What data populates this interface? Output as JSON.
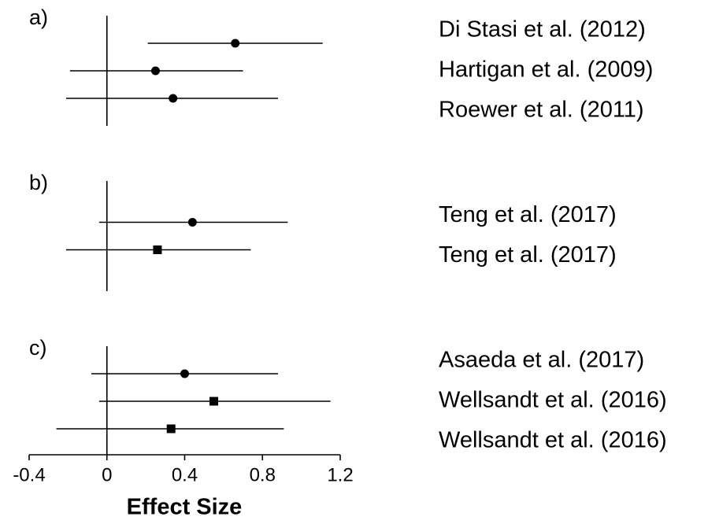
{
  "chart_data": {
    "type": "forest",
    "xlabel": "Effect Size",
    "xlim": [
      -0.4,
      1.2
    ],
    "xticks": [
      -0.4,
      0,
      0.4,
      0.8,
      1.2
    ],
    "color": "#000000",
    "panels": [
      {
        "label": "a)",
        "studies": [
          "Di Stasi et al. (2012)",
          "Hartigan et al. (2009)",
          "Roewer et al. (2011)"
        ],
        "values": [
          0.66,
          0.25,
          0.34
        ],
        "lower": [
          0.21,
          -0.19,
          -0.21
        ],
        "upper": [
          1.11,
          0.7,
          0.88
        ],
        "markers": [
          "circle",
          "circle",
          "circle"
        ]
      },
      {
        "label": "b)",
        "studies": [
          "Teng et al. (2017)",
          "Teng et al. (2017)"
        ],
        "values": [
          0.44,
          0.26
        ],
        "lower": [
          -0.04,
          -0.21
        ],
        "upper": [
          0.93,
          0.74
        ],
        "markers": [
          "circle",
          "square"
        ]
      },
      {
        "label": "c)",
        "studies": [
          "Asaeda et al. (2017)",
          "Wellsandt et al. (2016)",
          "Wellsandt et al. (2016)"
        ],
        "values": [
          0.4,
          0.55,
          0.33
        ],
        "lower": [
          -0.08,
          -0.04,
          -0.26
        ],
        "upper": [
          0.88,
          1.15,
          0.91
        ],
        "markers": [
          "circle",
          "square",
          "square"
        ]
      }
    ]
  }
}
